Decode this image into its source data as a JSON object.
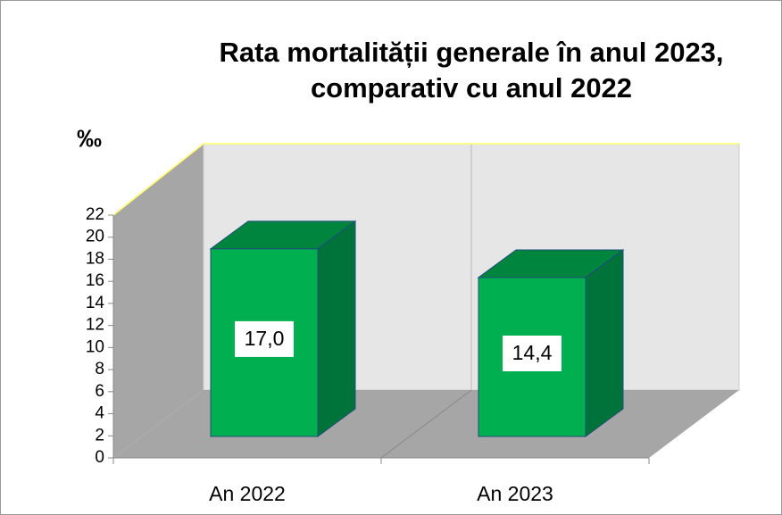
{
  "chart_data": {
    "type": "bar3d",
    "title": [
      "Rata mortalității generale în anul 2023,",
      "comparativ cu anul 2022"
    ],
    "y_label": "‰",
    "categories": [
      "An 2022",
      "An 2023"
    ],
    "values": [
      17.0,
      14.4
    ],
    "value_labels": [
      "17,0",
      "14,4"
    ],
    "color": "#00b050",
    "ylim": [
      0,
      22
    ],
    "yticks": [
      0,
      2,
      4,
      6,
      8,
      10,
      12,
      14,
      16,
      18,
      20,
      22
    ]
  }
}
